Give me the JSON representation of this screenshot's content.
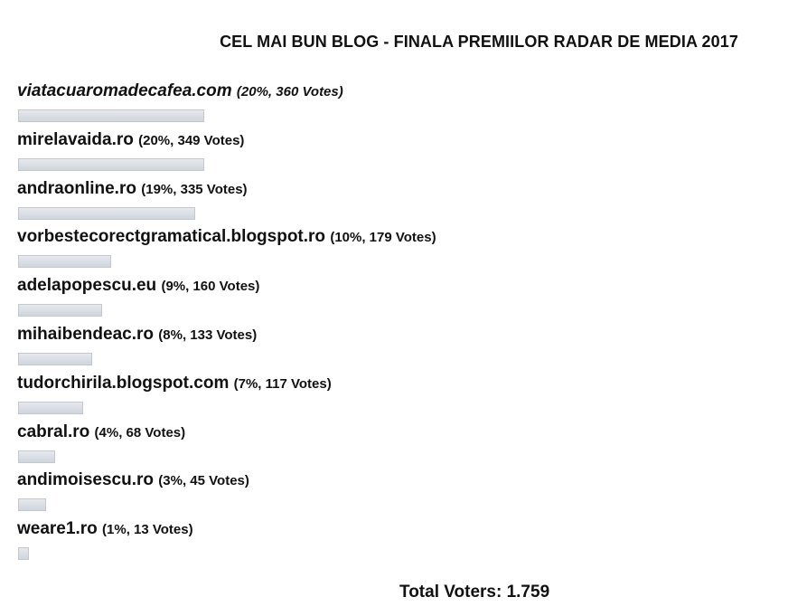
{
  "title": "CEL MAI BUN BLOG - FINALA PREMIILOR RADAR DE MEDIA 2017",
  "results": [
    {
      "name": "viatacuaromadecafea.com",
      "count": "(20%, 360 Votes)",
      "percent": 20
    },
    {
      "name": "mirelavaida.ro",
      "count": "(20%, 349 Votes)",
      "percent": 20
    },
    {
      "name": "andraonline.ro",
      "count": "(19%, 335 Votes)",
      "percent": 19
    },
    {
      "name": "vorbestecorectgramatical.blogspot.ro",
      "count": "(10%, 179 Votes)",
      "percent": 10
    },
    {
      "name": "adelapopescu.eu",
      "count": "(9%, 160 Votes)",
      "percent": 9
    },
    {
      "name": "mihaibendeac.ro",
      "count": "(8%, 133 Votes)",
      "percent": 8
    },
    {
      "name": "tudorchirila.blogspot.com",
      "count": "(7%, 117 Votes)",
      "percent": 7
    },
    {
      "name": "cabral.ro",
      "count": "(4%, 68 Votes)",
      "percent": 4
    },
    {
      "name": "andimoisescu.ro",
      "count": "(3%, 45 Votes)",
      "percent": 3
    },
    {
      "name": "weare1.ro",
      "count": "(1%, 13 Votes)",
      "percent": 1
    }
  ],
  "total": "Total Voters: 1.759"
}
